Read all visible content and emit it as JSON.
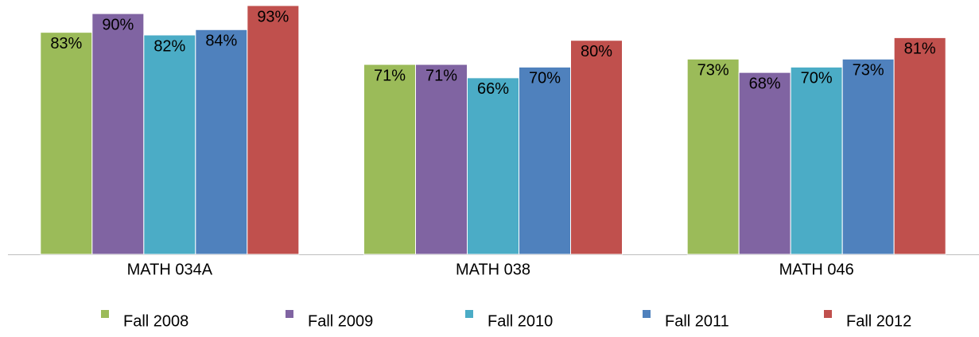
{
  "chart_data": {
    "type": "bar",
    "categories": [
      "MATH 034A",
      "MATH 038",
      "MATH 046"
    ],
    "series": [
      {
        "name": "Fall 2008",
        "color": "#9bbb59",
        "values": [
          83,
          71,
          73
        ],
        "value_labels": [
          "83%",
          "71%",
          "73%"
        ]
      },
      {
        "name": "Fall 2009",
        "color": "#8064a2",
        "values": [
          90,
          71,
          68
        ],
        "value_labels": [
          "90%",
          "71%",
          "68%"
        ]
      },
      {
        "name": "Fall 2010",
        "color": "#4bacc6",
        "values": [
          82,
          66,
          70
        ],
        "value_labels": [
          "82%",
          "66%",
          "70%"
        ]
      },
      {
        "name": "Fall 2011",
        "color": "#4f81bd",
        "values": [
          84,
          70,
          73
        ],
        "value_labels": [
          "84%",
          "70%",
          "73%"
        ]
      },
      {
        "name": "Fall 2012",
        "color": "#c0504d",
        "values": [
          93,
          80,
          81
        ],
        "value_labels": [
          "93%",
          "80%",
          "81%"
        ]
      }
    ],
    "legend": "bottom"
  }
}
